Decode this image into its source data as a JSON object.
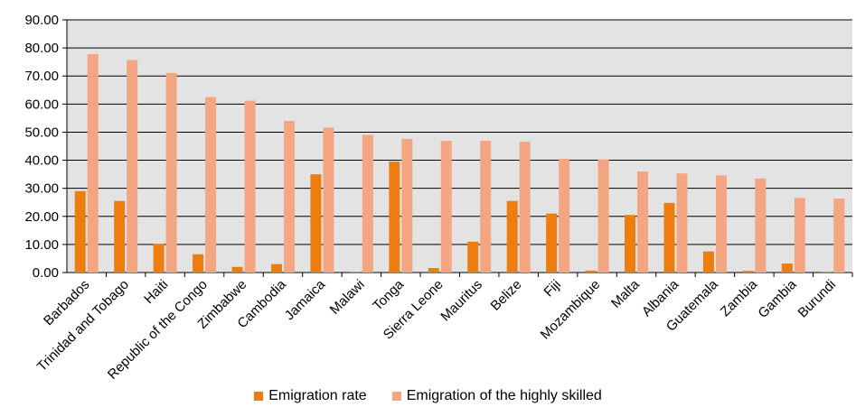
{
  "chart_data": {
    "type": "bar",
    "categories": [
      "Barbados",
      "Trinidad and Tobago",
      "Haiti",
      "Republic of the Congo",
      "Zimbabwe",
      "Cambodia",
      "Jamaica",
      "Malawi",
      "Tonga",
      "Sierra Leone",
      "Mauritus",
      "Belize",
      "Fiji",
      "Mozambique",
      "Malta",
      "Albania",
      "Guatemala",
      "Zambia",
      "Gambia",
      "Burundi"
    ],
    "series": [
      {
        "name": "Emigration rate",
        "color": "#ed7d0f",
        "values": [
          29.0,
          25.5,
          10.2,
          6.5,
          2.0,
          3.0,
          35.0,
          0.3,
          39.5,
          1.6,
          11.0,
          25.5,
          21.0,
          0.7,
          20.5,
          24.8,
          7.5,
          0.6,
          3.2,
          0.3
        ]
      },
      {
        "name": "Emigration of the highly skilled",
        "color": "#f4a582",
        "values": [
          77.8,
          75.7,
          71.1,
          62.5,
          61.2,
          54.0,
          51.6,
          49.0,
          47.6,
          46.9,
          46.9,
          46.6,
          40.5,
          40.3,
          36.0,
          35.3,
          34.6,
          33.5,
          26.6,
          26.3
        ]
      }
    ],
    "yticks": [
      "0.00",
      "10.00",
      "20.00",
      "30.00",
      "40.00",
      "50.00",
      "60.00",
      "70.00",
      "80.00",
      "90.00"
    ],
    "ylim": [
      0,
      90
    ],
    "grid": true,
    "legend_position": "bottom"
  }
}
